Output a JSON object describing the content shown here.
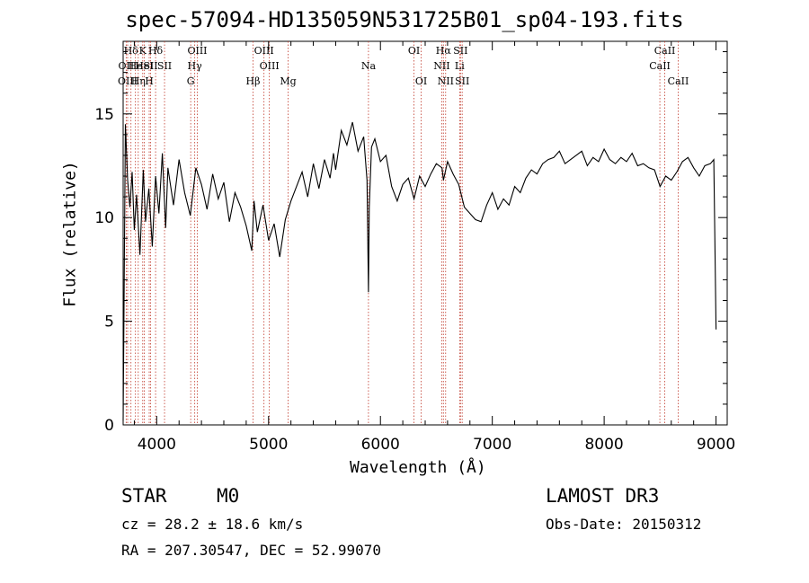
{
  "chart_data": {
    "type": "line",
    "title": "spec-57094-HD135059N531725B01_sp04-193.fits",
    "xlabel": "Wavelength (Å)",
    "ylabel": "Flux (relative)",
    "xlim": [
      3700,
      9100
    ],
    "ylim": [
      0,
      18.5
    ],
    "x_ticks": [
      4000,
      5000,
      6000,
      7000,
      8000,
      9000
    ],
    "y_ticks": [
      0,
      5,
      10,
      15
    ],
    "series": [
      {
        "name": "spectrum",
        "x": [
          3700,
          3720,
          3740,
          3760,
          3780,
          3800,
          3820,
          3850,
          3880,
          3900,
          3930,
          3960,
          3990,
          4020,
          4050,
          4080,
          4100,
          4150,
          4200,
          4250,
          4300,
          4350,
          4400,
          4450,
          4500,
          4550,
          4600,
          4650,
          4700,
          4750,
          4800,
          4850,
          4870,
          4900,
          4950,
          5000,
          5050,
          5100,
          5150,
          5200,
          5250,
          5300,
          5350,
          5400,
          5450,
          5500,
          5550,
          5580,
          5600,
          5650,
          5700,
          5750,
          5800,
          5850,
          5880,
          5893,
          5900,
          5920,
          5950,
          6000,
          6050,
          6100,
          6150,
          6200,
          6250,
          6300,
          6350,
          6400,
          6450,
          6500,
          6550,
          6563,
          6600,
          6650,
          6700,
          6750,
          6800,
          6850,
          6900,
          6950,
          7000,
          7050,
          7100,
          7150,
          7200,
          7250,
          7300,
          7350,
          7400,
          7450,
          7500,
          7550,
          7600,
          7650,
          7700,
          7750,
          7800,
          7850,
          7900,
          7950,
          8000,
          8050,
          8100,
          8150,
          8200,
          8250,
          8300,
          8350,
          8400,
          8450,
          8500,
          8550,
          8600,
          8650,
          8700,
          8750,
          8800,
          8850,
          8900,
          8950,
          8980,
          9000
        ],
        "values": [
          0.2,
          14.5,
          11.8,
          10.5,
          12.2,
          9.4,
          11.1,
          8.2,
          12.3,
          9.8,
          11.4,
          8.6,
          12.0,
          10.2,
          13.1,
          9.5,
          12.4,
          10.6,
          12.8,
          11.2,
          10.1,
          12.4,
          11.6,
          10.4,
          12.1,
          10.9,
          11.7,
          9.8,
          11.2,
          10.5,
          9.6,
          8.4,
          10.8,
          9.3,
          10.6,
          8.9,
          9.7,
          8.1,
          9.9,
          10.8,
          11.5,
          12.2,
          11.0,
          12.6,
          11.4,
          12.8,
          11.9,
          13.1,
          12.3,
          14.2,
          13.5,
          14.6,
          13.2,
          13.9,
          11.8,
          6.4,
          10.5,
          13.4,
          13.8,
          12.7,
          13.0,
          11.5,
          10.8,
          11.6,
          11.9,
          10.9,
          12.0,
          11.5,
          12.1,
          12.6,
          12.4,
          11.8,
          12.7,
          12.1,
          11.6,
          10.5,
          10.2,
          9.9,
          9.8,
          10.6,
          11.2,
          10.4,
          10.9,
          10.6,
          11.5,
          11.2,
          11.9,
          12.3,
          12.1,
          12.6,
          12.8,
          12.9,
          13.2,
          12.6,
          12.8,
          13.0,
          13.2,
          12.5,
          12.9,
          12.7,
          13.3,
          12.8,
          12.6,
          12.9,
          12.7,
          13.1,
          12.5,
          12.6,
          12.4,
          12.3,
          11.5,
          12.0,
          11.8,
          12.2,
          12.7,
          12.9,
          12.4,
          12.0,
          12.5,
          12.6,
          12.8,
          4.6
        ]
      }
    ],
    "lines": [
      {
        "label": "Hδ",
        "wave": 3770,
        "row": 0
      },
      {
        "label": "OII",
        "wave": 3727,
        "row": 1
      },
      {
        "label": "OIII",
        "wave": 3740,
        "row": 2
      },
      {
        "label": "He",
        "wave": 3810,
        "row": 1
      },
      {
        "label": "Hη",
        "wave": 3835,
        "row": 2
      },
      {
        "label": "K",
        "wave": 3875,
        "row": 0
      },
      {
        "label": "HeI",
        "wave": 3889,
        "row": 1
      },
      {
        "label": "SII",
        "wave": 3945,
        "row": 1
      },
      {
        "label": "H",
        "wave": 3933,
        "row": 2
      },
      {
        "label": "Hδ",
        "wave": 3990,
        "row": 0
      },
      {
        "label": "SII",
        "wave": 4070,
        "row": 1
      },
      {
        "label": "OIII",
        "wave": 4363,
        "row": 0
      },
      {
        "label": "Hγ",
        "wave": 4340,
        "row": 1
      },
      {
        "label": "G",
        "wave": 4304,
        "row": 2
      },
      {
        "label": "Hβ",
        "wave": 4861,
        "row": 2
      },
      {
        "label": "OIII",
        "wave": 4959,
        "row": 0
      },
      {
        "label": "OIII",
        "wave": 5007,
        "row": 1
      },
      {
        "label": "Mg",
        "wave": 5175,
        "row": 2
      },
      {
        "label": "Na",
        "wave": 5893,
        "row": 1
      },
      {
        "label": "OI",
        "wave": 6300,
        "row": 0
      },
      {
        "label": "OI",
        "wave": 6364,
        "row": 2
      },
      {
        "label": "Hα",
        "wave": 6563,
        "row": 0
      },
      {
        "label": "NII",
        "wave": 6548,
        "row": 1
      },
      {
        "label": "NII",
        "wave": 6583,
        "row": 2
      },
      {
        "label": "SII",
        "wave": 6716,
        "row": 0
      },
      {
        "label": "Li",
        "wave": 6708,
        "row": 1
      },
      {
        "label": "SII",
        "wave": 6731,
        "row": 2
      },
      {
        "label": "CaII",
        "wave": 8498,
        "row": 1
      },
      {
        "label": "CaII",
        "wave": 8542,
        "row": 0
      },
      {
        "label": "CaII",
        "wave": 8662,
        "row": 2
      }
    ],
    "annotations": {
      "object_class": "STAR",
      "subclass": "M0",
      "survey": "LAMOST DR3",
      "cz": "cz = 28.2 ± 18.6 km/s",
      "obs_date": "Obs-Date: 20150312",
      "radec": "RA = 207.30547, DEC =  52.99070"
    }
  }
}
